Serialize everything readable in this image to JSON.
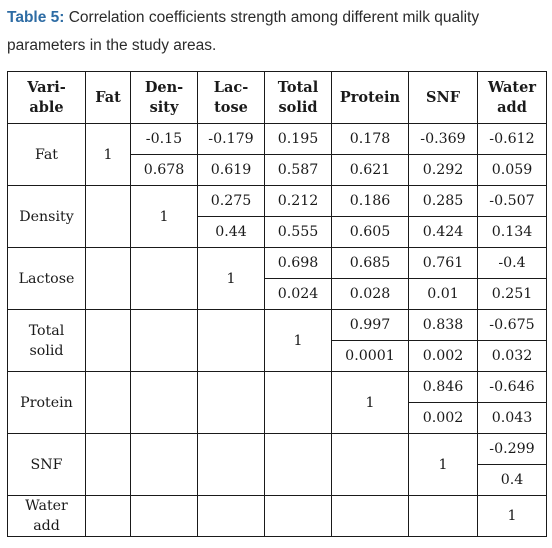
{
  "caption": {
    "label": "Table 5:",
    "line1": " Correlation coefficients strength among different milk quality",
    "line2": "parameters in the study areas."
  },
  "table": {
    "headers": [
      [
        "Vari-",
        "able"
      ],
      [
        "Fat"
      ],
      [
        "Den-",
        "sity"
      ],
      [
        "Lac-",
        "tose"
      ],
      [
        "Total",
        "solid"
      ],
      [
        "Protein"
      ],
      [
        "SNF"
      ],
      [
        "Water",
        "add"
      ]
    ],
    "rows": [
      {
        "variable": [
          "Fat"
        ],
        "diagonal": "1",
        "upper": [
          "-0.15",
          "-0.179",
          "0.195",
          "0.178",
          "-0.369",
          "-0.612"
        ],
        "lower": [
          "0.678",
          "0.619",
          "0.587",
          "0.621",
          "0.292",
          "0.059"
        ]
      },
      {
        "variable": [
          "Density"
        ],
        "diagonal": "1",
        "upper": [
          "0.275",
          "0.212",
          "0.186",
          "0.285",
          "-0.507"
        ],
        "lower": [
          "0.44",
          "0.555",
          "0.605",
          "0.424",
          "0.134"
        ]
      },
      {
        "variable": [
          "Lactose"
        ],
        "diagonal": "1",
        "upper": [
          "0.698",
          "0.685",
          "0.761",
          "-0.4"
        ],
        "lower": [
          "0.024",
          "0.028",
          "0.01",
          "0.251"
        ]
      },
      {
        "variable": [
          "Total",
          "solid"
        ],
        "diagonal": "1",
        "upper": [
          "0.997",
          "0.838",
          "-0.675"
        ],
        "lower": [
          "0.0001",
          "0.002",
          "0.032"
        ]
      },
      {
        "variable": [
          "Protein"
        ],
        "diagonal": "1",
        "upper": [
          "0.846",
          "-0.646"
        ],
        "lower": [
          "0.002",
          "0.043"
        ]
      },
      {
        "variable": [
          "SNF"
        ],
        "diagonal": "1",
        "upper": [
          "-0.299"
        ],
        "lower": [
          "0.4"
        ]
      },
      {
        "variable": [
          "Water",
          "add"
        ],
        "diagonal": "1",
        "upper": [],
        "lower": []
      }
    ]
  }
}
